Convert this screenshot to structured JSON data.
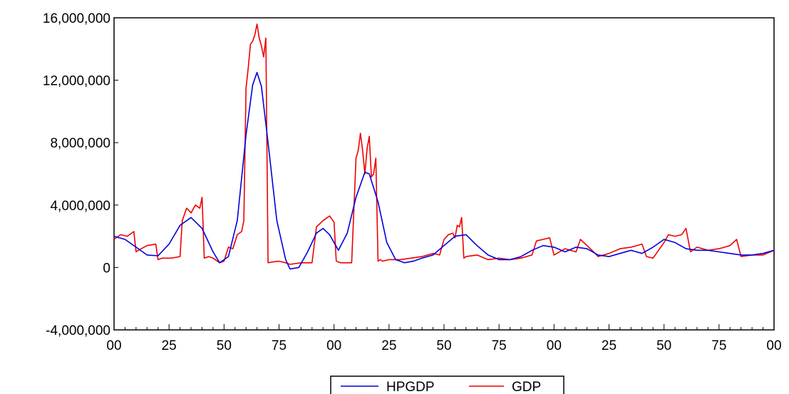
{
  "chart_data": {
    "type": "line",
    "title": "",
    "xlabel": "",
    "ylabel": "",
    "ylim": [
      -4000000,
      16000000
    ],
    "xlim": [
      0,
      300
    ],
    "grid": false,
    "legend_position": "bottom-center",
    "y_ticks": [
      {
        "value": -4000000,
        "label": "-4,000,000"
      },
      {
        "value": 0,
        "label": "0"
      },
      {
        "value": 4000000,
        "label": "4,000,000"
      },
      {
        "value": 8000000,
        "label": "8,000,000"
      },
      {
        "value": 12000000,
        "label": "12,000,000"
      },
      {
        "value": 16000000,
        "label": "16,000,000"
      }
    ],
    "x_ticks": [
      {
        "value": 0,
        "label": "00"
      },
      {
        "value": 25,
        "label": "25"
      },
      {
        "value": 50,
        "label": "50"
      },
      {
        "value": 75,
        "label": "75"
      },
      {
        "value": 100,
        "label": "00"
      },
      {
        "value": 125,
        "label": "25"
      },
      {
        "value": 150,
        "label": "50"
      },
      {
        "value": 175,
        "label": "75"
      },
      {
        "value": 200,
        "label": "00"
      },
      {
        "value": 225,
        "label": "25"
      },
      {
        "value": 250,
        "label": "50"
      },
      {
        "value": 275,
        "label": "75"
      },
      {
        "value": 300,
        "label": "00"
      }
    ],
    "series": [
      {
        "name": "HPGDP",
        "color": "#0000dd",
        "x": [
          0,
          5,
          10,
          15,
          20,
          25,
          30,
          35,
          40,
          45,
          48,
          52,
          56,
          60,
          63,
          65,
          67,
          70,
          74,
          78,
          80,
          84,
          88,
          92,
          95,
          98,
          102,
          106,
          110,
          114,
          116,
          120,
          124,
          128,
          132,
          136,
          140,
          145,
          150,
          155,
          160,
          165,
          170,
          175,
          180,
          185,
          190,
          195,
          200,
          205,
          210,
          215,
          220,
          225,
          230,
          235,
          240,
          245,
          250,
          255,
          260,
          265,
          270,
          275,
          280,
          285,
          290,
          295,
          300
        ],
        "y": [
          2000000,
          1800000,
          1300000,
          800000,
          750000,
          1500000,
          2700000,
          3200000,
          2500000,
          1000000,
          300000,
          700000,
          3000000,
          8500000,
          11700000,
          12500000,
          11600000,
          8000000,
          3000000,
          500000,
          -100000,
          0,
          1000000,
          2200000,
          2500000,
          2100000,
          1100000,
          2200000,
          4500000,
          6100000,
          6000000,
          4200000,
          1600000,
          500000,
          300000,
          400000,
          600000,
          800000,
          1400000,
          2000000,
          2100000,
          1400000,
          800000,
          500000,
          500000,
          700000,
          1100000,
          1400000,
          1300000,
          1000000,
          1300000,
          1200000,
          800000,
          700000,
          900000,
          1100000,
          900000,
          1300000,
          1800000,
          1600000,
          1200000,
          1100000,
          1100000,
          1000000,
          900000,
          800000,
          800000,
          900000,
          1100000
        ]
      },
      {
        "name": "GDP",
        "color": "#ee0000",
        "x": [
          0,
          3,
          6,
          9,
          10,
          11,
          15,
          19,
          20,
          22,
          26,
          30,
          31,
          33,
          35,
          37,
          39,
          40,
          41,
          43,
          45,
          48,
          50,
          52,
          54,
          56,
          58,
          59,
          60,
          61,
          62,
          63,
          64,
          65,
          66,
          67,
          68,
          69,
          70,
          72,
          75,
          78,
          80,
          85,
          90,
          92,
          95,
          98,
          100,
          101,
          103,
          105,
          108,
          110,
          111,
          112,
          113,
          114,
          115,
          116,
          117,
          118,
          119,
          120,
          121,
          122,
          125,
          130,
          135,
          140,
          145,
          148,
          150,
          152,
          154,
          155,
          156,
          157,
          158,
          159,
          160,
          165,
          170,
          175,
          180,
          185,
          190,
          192,
          195,
          198,
          200,
          205,
          210,
          212,
          215,
          218,
          220,
          225,
          230,
          235,
          240,
          242,
          245,
          250,
          252,
          255,
          258,
          260,
          262,
          265,
          270,
          275,
          280,
          283,
          285,
          290,
          295,
          300
        ],
        "y": [
          1800000,
          2100000,
          2000000,
          2300000,
          1000000,
          1100000,
          1400000,
          1500000,
          500000,
          600000,
          600000,
          700000,
          3000000,
          3800000,
          3500000,
          4000000,
          3800000,
          4500000,
          600000,
          700000,
          600000,
          300000,
          400000,
          1300000,
          1200000,
          2100000,
          2300000,
          3000000,
          11500000,
          12800000,
          14300000,
          14500000,
          14900000,
          15600000,
          14700000,
          14200000,
          13500000,
          14700000,
          300000,
          350000,
          400000,
          300000,
          200000,
          300000,
          300000,
          2600000,
          3000000,
          3300000,
          2900000,
          400000,
          300000,
          300000,
          300000,
          7000000,
          7500000,
          8600000,
          7500000,
          6000000,
          7600000,
          8400000,
          5800000,
          6000000,
          7000000,
          400000,
          500000,
          400000,
          500000,
          500000,
          600000,
          700000,
          900000,
          800000,
          1800000,
          2100000,
          2200000,
          1900000,
          2700000,
          2600000,
          3200000,
          600000,
          700000,
          800000,
          500000,
          600000,
          500000,
          600000,
          800000,
          1700000,
          1800000,
          1900000,
          800000,
          1200000,
          1000000,
          1800000,
          1400000,
          1000000,
          700000,
          900000,
          1200000,
          1300000,
          1500000,
          700000,
          600000,
          1600000,
          2100000,
          2000000,
          2100000,
          2500000,
          1000000,
          1300000,
          1100000,
          1200000,
          1400000,
          1800000,
          700000,
          800000,
          800000,
          1100000
        ]
      }
    ]
  }
}
